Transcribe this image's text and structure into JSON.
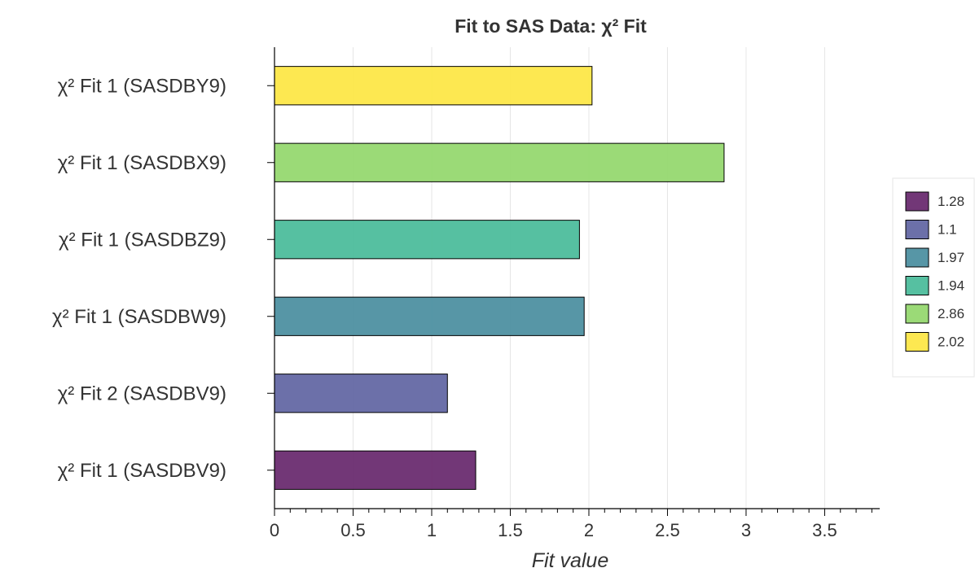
{
  "chart_data": {
    "type": "bar",
    "orientation": "horizontal",
    "title": "Fit to SAS Data: χ² Fit",
    "xlabel": "Fit value",
    "ylabel": "",
    "xlim": [
      0,
      3.85
    ],
    "xticks": [
      0,
      0.5,
      1,
      1.5,
      2,
      2.5,
      3,
      3.5
    ],
    "xtick_labels": [
      "0",
      "0.5",
      "1",
      "1.5",
      "2",
      "2.5",
      "3",
      "3.5"
    ],
    "grid": true,
    "legend_position": "right",
    "categories": [
      "χ² Fit 1 (SASDBV9)",
      "χ² Fit 2 (SASDBV9)",
      "χ² Fit 1 (SASDBW9)",
      "χ² Fit 1 (SASDBZ9)",
      "χ² Fit 1 (SASDBX9)",
      "χ² Fit 1 (SASDBY9)"
    ],
    "values": [
      1.28,
      1.1,
      1.97,
      1.94,
      2.86,
      2.02
    ],
    "colors": [
      "#6a2c70",
      "#6468a4",
      "#4e90a1",
      "#4dbd9c",
      "#96d870",
      "#fde748"
    ],
    "legend": [
      "1.28",
      "1.1",
      "1.97",
      "1.94",
      "2.86",
      "2.02"
    ]
  }
}
